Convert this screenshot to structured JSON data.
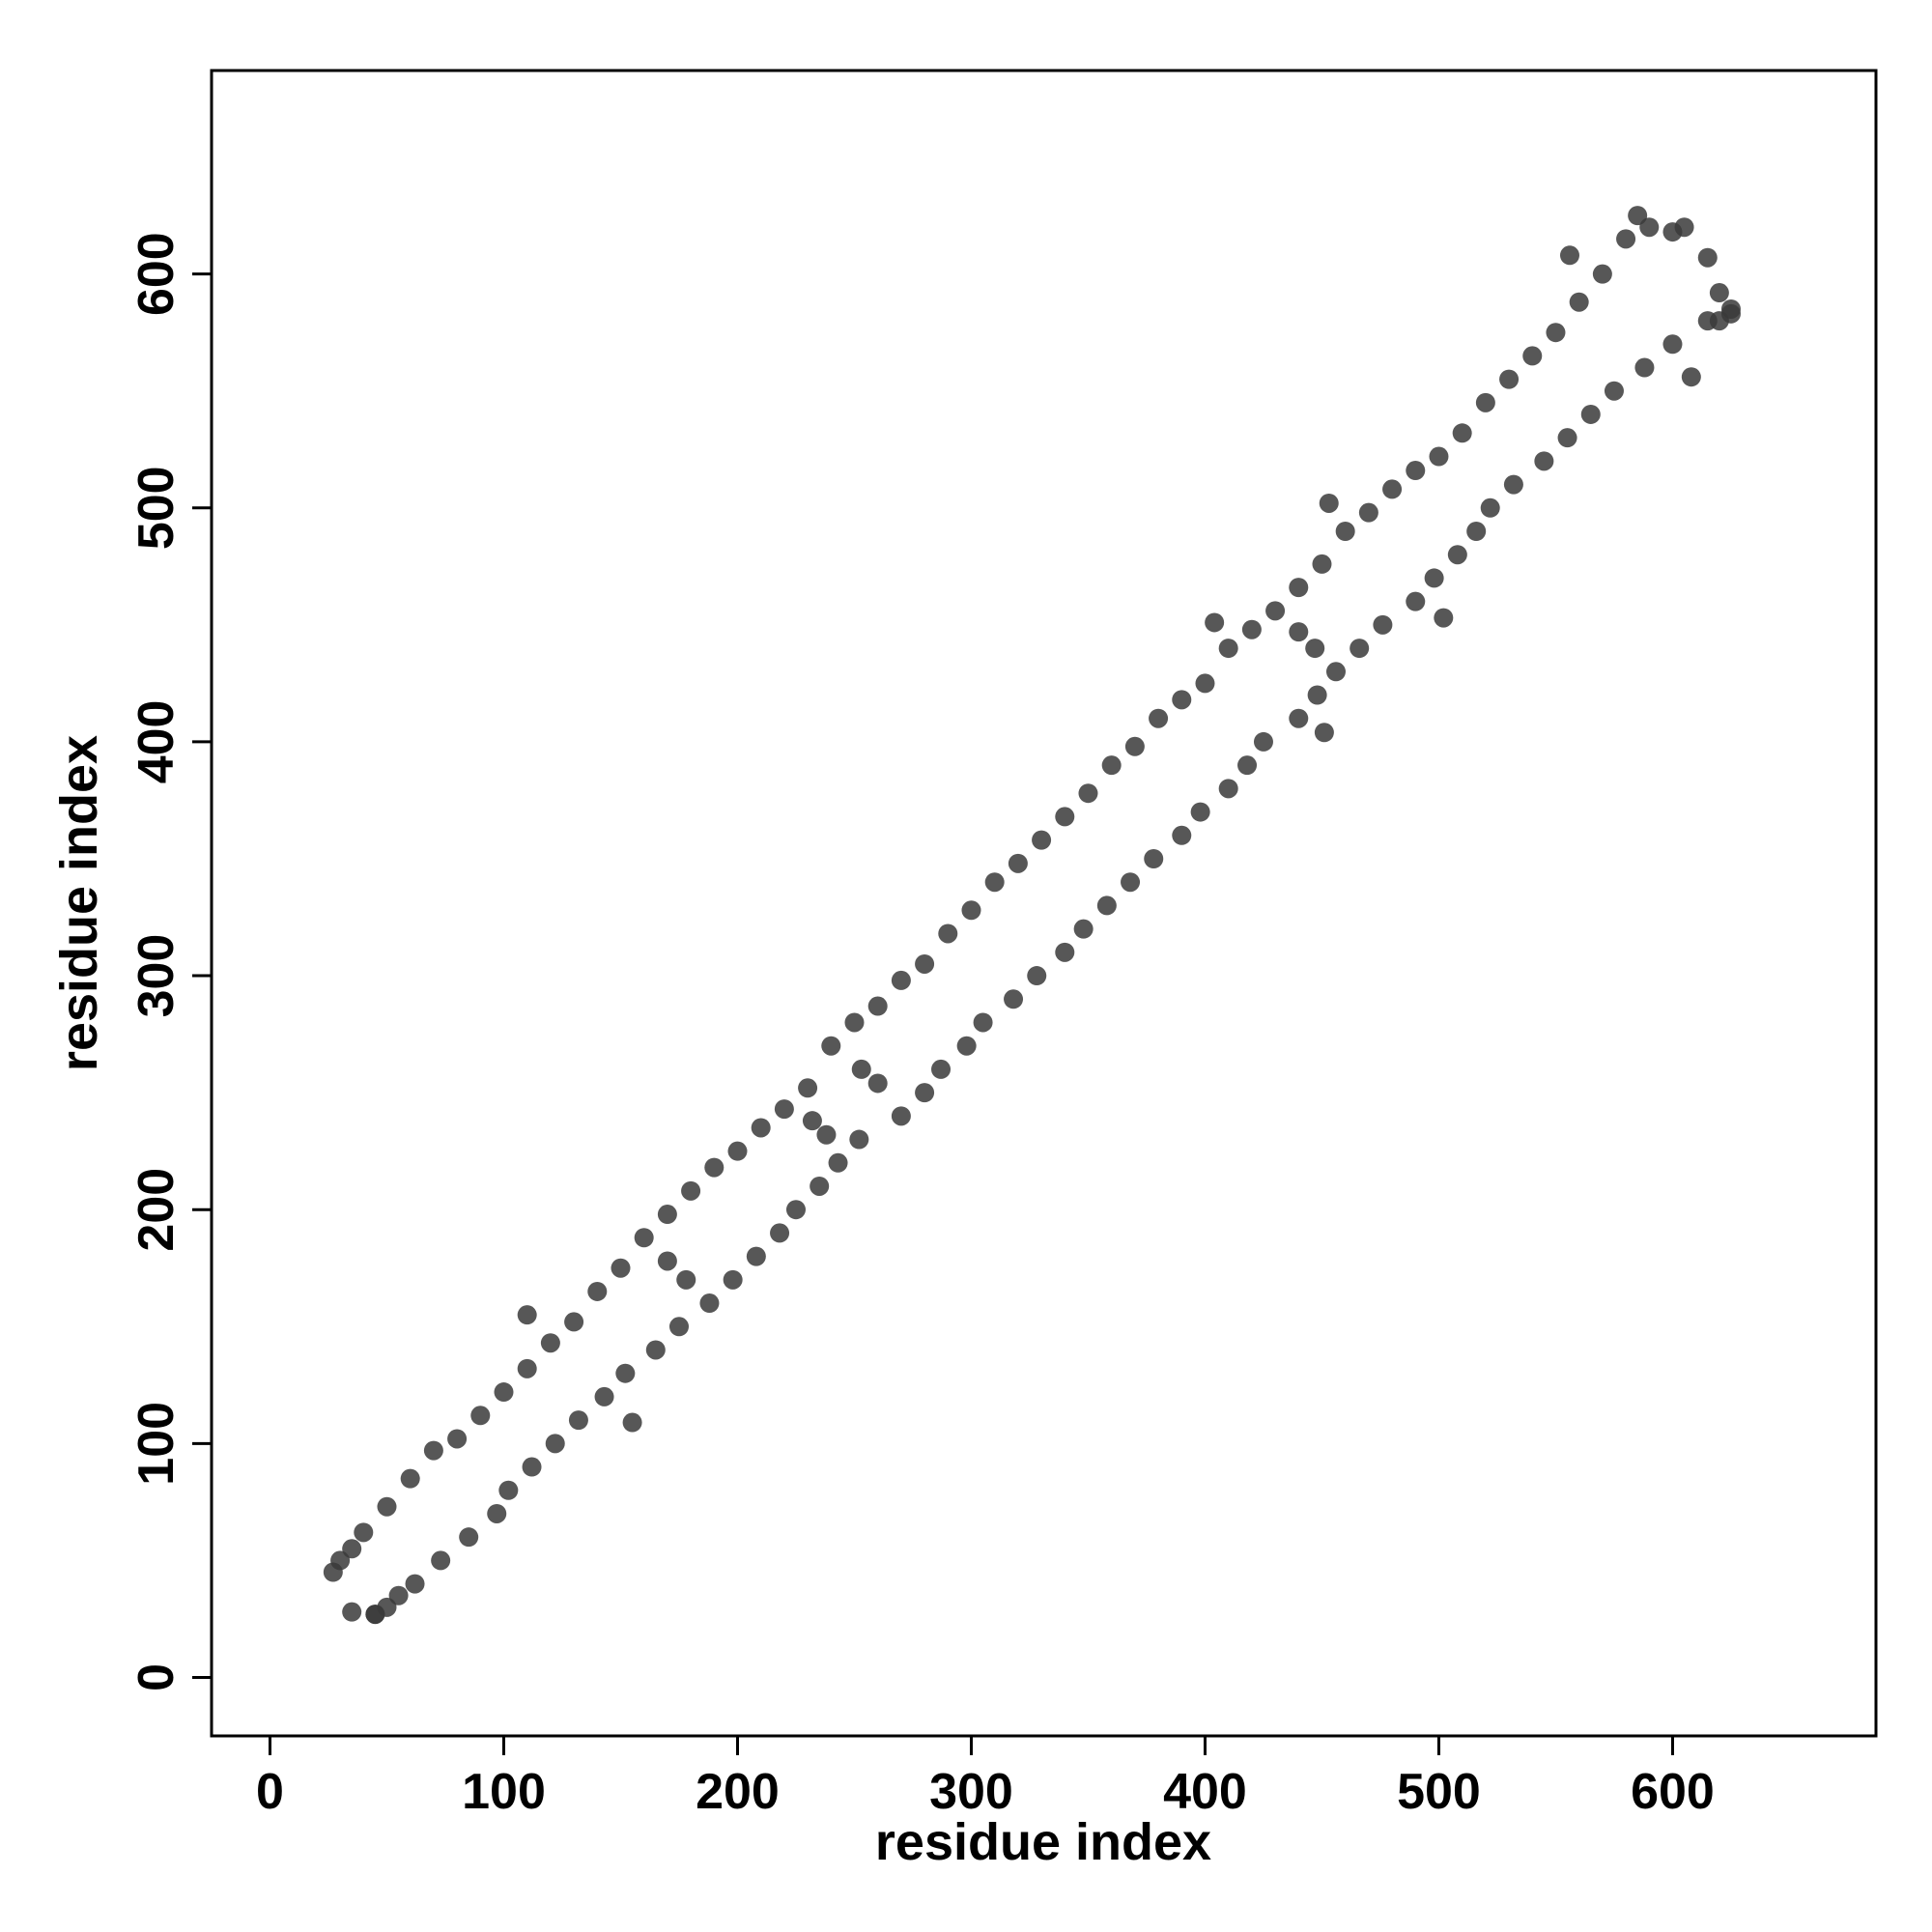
{
  "chart_data": {
    "type": "scatter",
    "xlabel": "residue index",
    "ylabel": "residue index",
    "color": "#3a3a3a",
    "xlim": [
      -25,
      687
    ],
    "ylim": [
      -25,
      687
    ],
    "xticks": [
      0,
      100,
      200,
      300,
      400,
      500,
      600
    ],
    "yticks": [
      0,
      100,
      200,
      300,
      400,
      500,
      600
    ],
    "x": [
      27,
      30,
      35,
      40,
      50,
      60,
      70,
      80,
      90,
      100,
      110,
      120,
      130,
      140,
      150,
      160,
      170,
      180,
      190,
      200,
      210,
      220,
      230,
      240,
      250,
      260,
      270,
      280,
      290,
      300,
      310,
      320,
      330,
      340,
      350,
      360,
      370,
      380,
      390,
      400,
      410,
      420,
      430,
      440,
      450,
      460,
      470,
      480,
      490,
      500,
      510,
      520,
      530,
      540,
      550,
      560,
      570,
      580,
      585,
      45,
      50,
      55,
      62,
      73,
      85,
      97,
      102,
      112,
      122,
      132,
      143,
      152,
      165,
      175,
      188,
      198,
      208,
      218,
      225,
      235,
      243,
      252,
      270,
      280,
      287,
      298,
      305,
      318,
      328,
      340,
      348,
      358,
      368,
      378,
      390,
      398,
      410,
      418,
      425,
      440,
      448,
      456,
      466,
      476,
      490,
      498,
      508,
      516,
      522,
      532,
      545,
      555,
      565,
      575,
      588,
      600,
      615,
      625,
      590,
      600,
      605,
      615,
      620,
      625,
      620,
      35,
      45,
      110,
      155,
      253,
      260,
      232,
      238,
      404,
      451,
      440,
      447,
      453,
      502,
      556,
      608,
      170,
      178
    ],
    "values": [
      45,
      50,
      55,
      62,
      73,
      85,
      97,
      102,
      112,
      122,
      132,
      143,
      152,
      165,
      175,
      188,
      198,
      208,
      218,
      225,
      235,
      243,
      252,
      270,
      280,
      287,
      298,
      305,
      318,
      328,
      340,
      348,
      358,
      368,
      378,
      390,
      398,
      410,
      418,
      425,
      440,
      448,
      456,
      466,
      476,
      490,
      498,
      508,
      516,
      522,
      532,
      545,
      555,
      565,
      575,
      588,
      600,
      615,
      625,
      27,
      30,
      35,
      40,
      50,
      60,
      70,
      80,
      90,
      100,
      110,
      120,
      130,
      140,
      150,
      160,
      170,
      180,
      190,
      200,
      210,
      220,
      230,
      240,
      250,
      260,
      270,
      280,
      290,
      300,
      310,
      320,
      330,
      340,
      350,
      360,
      370,
      380,
      390,
      400,
      410,
      420,
      430,
      440,
      450,
      460,
      470,
      480,
      490,
      500,
      510,
      520,
      530,
      540,
      550,
      560,
      570,
      580,
      585,
      620,
      618,
      620,
      607,
      592,
      583,
      580,
      28,
      27,
      155,
      109,
      260,
      254,
      238,
      232,
      451,
      404,
      447,
      440,
      502,
      453,
      608,
      556,
      178,
      170
    ]
  }
}
